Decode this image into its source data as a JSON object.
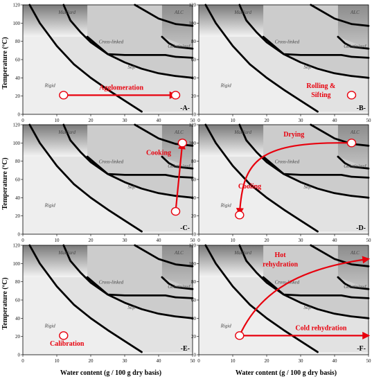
{
  "chart_data": {
    "type": "line",
    "xlabel": "Water content (g / 100 g dry basis)",
    "ylabel": "Temperature (ºC)",
    "xlim": [
      0,
      50
    ],
    "ylim": [
      0,
      120
    ],
    "xticks": [
      0,
      10,
      20,
      30,
      40,
      50
    ],
    "yticks": [
      0,
      20,
      40,
      60,
      80,
      100,
      120
    ],
    "region_labels": [
      "Maillard",
      "ALC",
      "Cross-linked",
      "Gelatinized",
      "Soft",
      "Rigid"
    ],
    "boundaries": [
      {
        "x": [
          2,
          5,
          10,
          15,
          20,
          25,
          30,
          35
        ],
        "y": [
          120,
          100,
          75,
          55,
          40,
          27,
          15,
          3
        ]
      },
      {
        "x": [
          12,
          14,
          17,
          20,
          25,
          30,
          35,
          40,
          45,
          50
        ],
        "y": [
          120,
          103,
          90,
          79,
          66,
          57,
          50,
          45,
          42,
          40
        ]
      },
      {
        "x": [
          19,
          25,
          30,
          35,
          42,
          45,
          50
        ],
        "y": [
          85,
          66,
          65,
          65,
          65,
          63,
          62
        ]
      },
      {
        "x": [
          33,
          40,
          45,
          50
        ],
        "y": [
          120,
          105,
          99,
          97
        ]
      },
      {
        "x": [
          41,
          43,
          45,
          50
        ],
        "y": [
          85,
          78,
          74,
          72
        ]
      }
    ],
    "panels": [
      {
        "label": "-A-",
        "annotations": [
          {
            "text": "Agglomeration",
            "x": 29,
            "y": 27
          }
        ],
        "points": [
          {
            "x": 12,
            "y": 21
          },
          {
            "x": 45,
            "y": 21
          }
        ],
        "arrows": [
          {
            "x": [
              12,
              45
            ],
            "y": [
              21,
              21
            ]
          }
        ]
      },
      {
        "label": "-B-",
        "annotations": [
          {
            "text": "Rolling &",
            "x": 36,
            "y": 29
          },
          {
            "text": "Sifting",
            "x": 36,
            "y": 19
          }
        ],
        "points": [
          {
            "x": 45,
            "y": 21
          }
        ],
        "arrows": []
      },
      {
        "label": "-C-",
        "annotations": [
          {
            "text": "Cooking",
            "x": 40,
            "y": 87
          }
        ],
        "points": [
          {
            "x": 45,
            "y": 25
          },
          {
            "x": 47,
            "y": 100
          }
        ],
        "arrows": [
          {
            "x": [
              45,
              47
            ],
            "y": [
              25,
              100
            ]
          }
        ]
      },
      {
        "label": "-D-",
        "annotations": [
          {
            "text": "Drying",
            "x": 28,
            "y": 107
          },
          {
            "text": "Cooling",
            "x": 15,
            "y": 50
          }
        ],
        "points": [
          {
            "x": 45,
            "y": 100
          },
          {
            "x": 12,
            "y": 21
          }
        ],
        "arrows": [
          {
            "x": [
              45,
              17,
              13,
              12
            ],
            "y": [
              100,
              102,
              80,
              22
            ]
          }
        ]
      },
      {
        "label": "-E-",
        "annotations": [
          {
            "text": "Calibration",
            "x": 13,
            "y": 10
          }
        ],
        "points": [
          {
            "x": 12,
            "y": 21
          }
        ],
        "arrows": []
      },
      {
        "label": "-F-",
        "annotations": [
          {
            "text": "Hot",
            "x": 24,
            "y": 107
          },
          {
            "text": "rehydration",
            "x": 24,
            "y": 97
          },
          {
            "text": "Cold rehydration",
            "x": 36,
            "y": 27
          }
        ],
        "points": [
          {
            "x": 12,
            "y": 21
          }
        ],
        "arrows": [
          {
            "x": [
              12,
              18,
              30,
              50
            ],
            "y": [
              21,
              70,
              95,
              105
            ]
          },
          {
            "x": [
              12,
              50
            ],
            "y": [
              21,
              21
            ]
          }
        ]
      }
    ]
  },
  "colors": {
    "arrow": "#e8000d",
    "boundary": "#000000",
    "rigid_fill": "#eeeeee",
    "soft_fill": "#e2e2e2",
    "crosslinked_fill": "#cccccc",
    "maillard_top": "#7a7a7a",
    "alc_fill": "#9a9a9a"
  }
}
